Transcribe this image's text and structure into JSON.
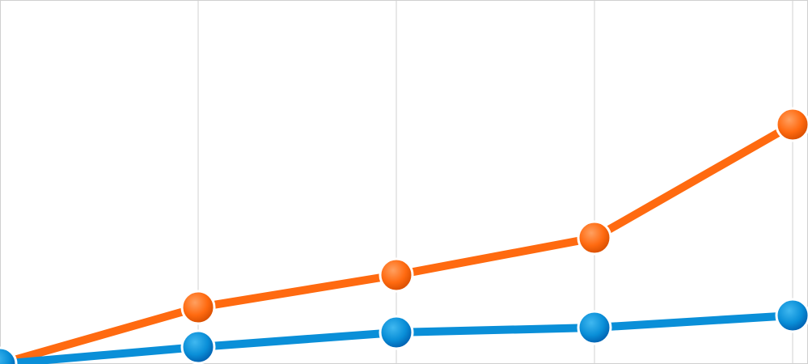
{
  "chart_data": {
    "type": "line",
    "categories": [
      null,
      null,
      null,
      null,
      null
    ],
    "series": [
      {
        "color": "#ff6a10",
        "values": [
          0,
          70,
          110,
          156,
          296
        ]
      },
      {
        "color": "#0a8fd8",
        "values": [
          0,
          21,
          39,
          45,
          60
        ]
      }
    ],
    "ylim": [
      0,
      450
    ],
    "grid": true
  }
}
